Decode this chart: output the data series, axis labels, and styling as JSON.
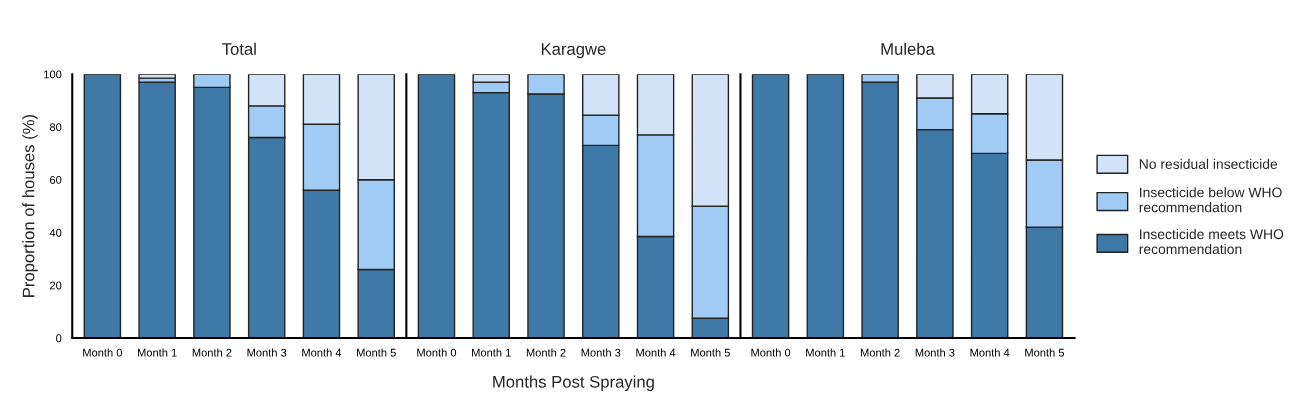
{
  "chart_data": [
    {
      "type": "bar",
      "title": "Total",
      "ylabel": "Proportion of houses (%)",
      "stacked": true,
      "categories": [
        "Month 0",
        "Month 1",
        "Month 2",
        "Month 3",
        "Month 4",
        "Month 5"
      ],
      "ylim": [
        0,
        100
      ],
      "yticks": [
        0,
        20,
        40,
        60,
        80,
        100
      ],
      "grid": false,
      "series": [
        {
          "color": "#3f79a8",
          "values": [
            100,
            97,
            95,
            76,
            56,
            26
          ]
        },
        {
          "color": "#a0cbf5",
          "values": [
            0,
            1.5,
            5,
            12,
            25,
            34
          ]
        },
        {
          "color": "#d3e3f7",
          "values": [
            0,
            1.5,
            0,
            12,
            19,
            40
          ]
        }
      ]
    },
    {
      "type": "bar",
      "title": "Karagwe",
      "xlabel": "Months Post Spraying",
      "stacked": true,
      "categories": [
        "Month 0",
        "Month 1",
        "Month 2",
        "Month 3",
        "Month 4",
        "Month 5"
      ],
      "ylim": [
        0,
        100
      ],
      "tick_labels": "x",
      "grid": false,
      "series": [
        {
          "color": "#3f79a8",
          "values": [
            100,
            93,
            92.5,
            73,
            38.5,
            7.5
          ]
        },
        {
          "color": "#a0cbf5",
          "values": [
            0,
            4,
            7.5,
            11.5,
            38.5,
            42.5
          ]
        },
        {
          "color": "#d3e3f7",
          "values": [
            0,
            3,
            0,
            15.5,
            23,
            50
          ]
        }
      ]
    },
    {
      "type": "bar",
      "title": "Muleba",
      "stacked": true,
      "categories": [
        "Month 0",
        "Month 1",
        "Month 2",
        "Month 3",
        "Month 4",
        "Month 5"
      ],
      "ylim": [
        0,
        100
      ],
      "tick_labels": "x",
      "grid": false,
      "legend": "right",
      "series": [
        {
          "name": "Insecticide meets WHO\nrecommendation",
          "color": "#3f79a8",
          "values": [
            100,
            100,
            97,
            79,
            70,
            42
          ]
        },
        {
          "name": "Insecticide below WHO\nrecommendation",
          "color": "#a0cbf5",
          "values": [
            0,
            0,
            3,
            12,
            15,
            25.5
          ]
        },
        {
          "name": "No residual insecticide",
          "color": "#d3e3f7",
          "values": [
            0,
            0,
            0,
            9,
            15,
            32.5
          ]
        }
      ]
    }
  ]
}
